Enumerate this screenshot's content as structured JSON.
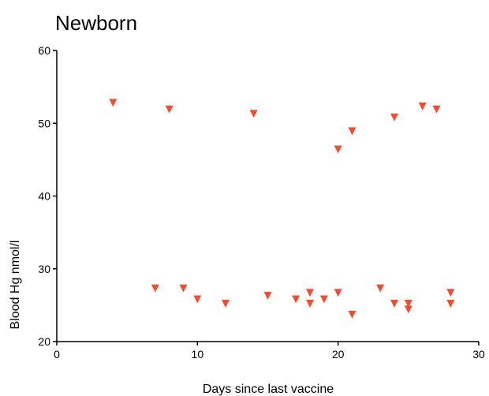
{
  "chart_data": {
    "type": "scatter",
    "title": "Newborn",
    "xlabel": "Days since last vaccine",
    "ylabel": "Blood Hg nmol/l",
    "xlim": [
      0,
      30
    ],
    "ylim": [
      20,
      60
    ],
    "x_ticks": [
      "0",
      "10",
      "20",
      "30"
    ],
    "y_ticks": [
      "20",
      "30",
      "40",
      "50",
      "60"
    ],
    "grid": false,
    "marker": "triangle-down",
    "color": "#f04e30",
    "series": [
      {
        "points": [
          {
            "x": 4,
            "y": 52.8
          },
          {
            "x": 8,
            "y": 51.9
          },
          {
            "x": 14,
            "y": 51.3
          },
          {
            "x": 20,
            "y": 46.4
          },
          {
            "x": 21,
            "y": 48.9
          },
          {
            "x": 24,
            "y": 50.8
          },
          {
            "x": 26,
            "y": 52.3
          },
          {
            "x": 27,
            "y": 51.9
          },
          {
            "x": 7,
            "y": 27.3
          },
          {
            "x": 9,
            "y": 27.3
          },
          {
            "x": 10,
            "y": 25.8
          },
          {
            "x": 12,
            "y": 25.2
          },
          {
            "x": 15,
            "y": 26.3
          },
          {
            "x": 17,
            "y": 25.8
          },
          {
            "x": 18,
            "y": 26.7
          },
          {
            "x": 18,
            "y": 25.2
          },
          {
            "x": 19,
            "y": 25.8
          },
          {
            "x": 20,
            "y": 26.7
          },
          {
            "x": 21,
            "y": 23.7
          },
          {
            "x": 23,
            "y": 27.3
          },
          {
            "x": 24,
            "y": 25.2
          },
          {
            "x": 25,
            "y": 25.2
          },
          {
            "x": 25,
            "y": 24.4
          },
          {
            "x": 28,
            "y": 26.7
          },
          {
            "x": 28,
            "y": 25.2
          }
        ]
      }
    ]
  }
}
